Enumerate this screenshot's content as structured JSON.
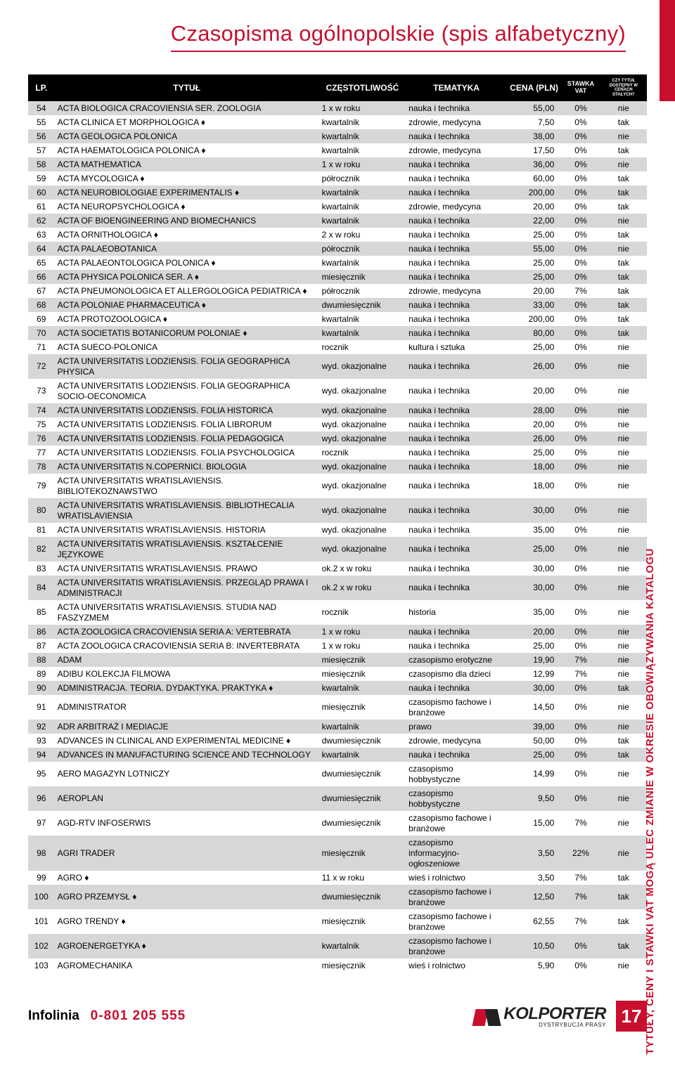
{
  "page_title": "Czasopisma ogólnopolskie (spis alfabetyczny)",
  "side_note": "TYTUŁY, CENY I STAWKI VAT MOGĄ ULEC ZMIANIE W OKRESIE OBOWIĄZYWANIA KATALOGU",
  "infolinia_label": "Infolinia",
  "infolinia_phone": "0-801 205 555",
  "logo_name": "KOLPORTER",
  "logo_sub": "DYSTRYBUCJA PRASY",
  "page_number": "17",
  "colors": {
    "accent": "#c8102e",
    "header_bg": "#000000",
    "header_fg": "#ffffff",
    "row_even": "#d6d7d8",
    "row_odd": "#ffffff"
  },
  "columns": [
    {
      "key": "lp",
      "label": "LP."
    },
    {
      "key": "title",
      "label": "TYTUŁ"
    },
    {
      "key": "freq",
      "label": "CZĘSTOTLIWOŚĆ"
    },
    {
      "key": "topic",
      "label": "TEMATYKA"
    },
    {
      "key": "price",
      "label": "CENA (PLN)"
    },
    {
      "key": "vat",
      "label": "STAWKA VAT"
    },
    {
      "key": "fixed",
      "label": "CZY TYTUŁ DOSTĘPNY W CENACH STAŁYCH?"
    }
  ],
  "rows": [
    {
      "lp": "54",
      "title": "ACTA BIOLOGICA CRACOVIENSIA SER. ZOOLOGIA",
      "freq": "1 x w roku",
      "topic": "nauka i technika",
      "price": "55,00",
      "vat": "0%",
      "fixed": "nie"
    },
    {
      "lp": "55",
      "title": "ACTA CLINICA ET MORPHOLOGICA ♦",
      "freq": "kwartalnik",
      "topic": "zdrowie, medycyna",
      "price": "7,50",
      "vat": "0%",
      "fixed": "tak"
    },
    {
      "lp": "56",
      "title": "ACTA GEOLOGICA POLONICA",
      "freq": "kwartalnik",
      "topic": "nauka i technika",
      "price": "38,00",
      "vat": "0%",
      "fixed": "nie"
    },
    {
      "lp": "57",
      "title": "ACTA HAEMATOLOGICA POLONICA ♦",
      "freq": "kwartalnik",
      "topic": "zdrowie, medycyna",
      "price": "17,50",
      "vat": "0%",
      "fixed": "tak"
    },
    {
      "lp": "58",
      "title": "ACTA MATHEMATICA",
      "freq": "1 x w roku",
      "topic": "nauka i technika",
      "price": "36,00",
      "vat": "0%",
      "fixed": "nie"
    },
    {
      "lp": "59",
      "title": "ACTA MYCOLOGICA ♦",
      "freq": "półrocznik",
      "topic": "nauka i technika",
      "price": "60,00",
      "vat": "0%",
      "fixed": "tak"
    },
    {
      "lp": "60",
      "title": "ACTA NEUROBIOLOGIAE EXPERIMENTALIS ♦",
      "freq": "kwartalnik",
      "topic": "nauka i technika",
      "price": "200,00",
      "vat": "0%",
      "fixed": "tak"
    },
    {
      "lp": "61",
      "title": "ACTA NEUROPSYCHOLOGICA ♦",
      "freq": "kwartalnik",
      "topic": "zdrowie, medycyna",
      "price": "20,00",
      "vat": "0%",
      "fixed": "tak"
    },
    {
      "lp": "62",
      "title": "ACTA OF BIOENGINEERING AND BIOMECHANICS",
      "freq": "kwartalnik",
      "topic": "nauka i technika",
      "price": "22,00",
      "vat": "0%",
      "fixed": "nie"
    },
    {
      "lp": "63",
      "title": "ACTA ORNITHOLOGICA ♦",
      "freq": "2 x w roku",
      "topic": "nauka i technika",
      "price": "25,00",
      "vat": "0%",
      "fixed": "tak"
    },
    {
      "lp": "64",
      "title": "ACTA PALAEOBOTANICA",
      "freq": "półrocznik",
      "topic": "nauka i technika",
      "price": "55,00",
      "vat": "0%",
      "fixed": "nie"
    },
    {
      "lp": "65",
      "title": "ACTA PALAEONTOLOGICA POLONICA ♦",
      "freq": "kwartalnik",
      "topic": "nauka i technika",
      "price": "25,00",
      "vat": "0%",
      "fixed": "tak"
    },
    {
      "lp": "66",
      "title": "ACTA PHYSICA POLONICA SER. A ♦",
      "freq": "miesięcznik",
      "topic": "nauka i technika",
      "price": "25,00",
      "vat": "0%",
      "fixed": "tak"
    },
    {
      "lp": "67",
      "title": "ACTA PNEUMONOLOGICA ET ALLERGOLOGICA PEDIATRICA ♦",
      "freq": "półrocznik",
      "topic": "zdrowie, medycyna",
      "price": "20,00",
      "vat": "7%",
      "fixed": "tak"
    },
    {
      "lp": "68",
      "title": "ACTA POLONIAE PHARMACEUTICA ♦",
      "freq": "dwumiesięcznik",
      "topic": "nauka i technika",
      "price": "33,00",
      "vat": "0%",
      "fixed": "tak"
    },
    {
      "lp": "69",
      "title": "ACTA PROTOZOOLOGICA ♦",
      "freq": "kwartalnik",
      "topic": "nauka i technika",
      "price": "200,00",
      "vat": "0%",
      "fixed": "tak"
    },
    {
      "lp": "70",
      "title": "ACTA SOCIETATIS BOTANICORUM POLONIAE ♦",
      "freq": "kwartalnik",
      "topic": "nauka i technika",
      "price": "80,00",
      "vat": "0%",
      "fixed": "tak"
    },
    {
      "lp": "71",
      "title": "ACTA SUECO-POLONICA",
      "freq": "rocznik",
      "topic": "kultura i sztuka",
      "price": "25,00",
      "vat": "0%",
      "fixed": "nie"
    },
    {
      "lp": "72",
      "title": "ACTA UNIVERSITATIS LODZIENSIS. FOLIA GEOGRAPHICA PHYSICA",
      "freq": "wyd. okazjonalne",
      "topic": "nauka i technika",
      "price": "26,00",
      "vat": "0%",
      "fixed": "nie"
    },
    {
      "lp": "73",
      "title": "ACTA UNIVERSITATIS LODZIENSIS. FOLIA GEOGRAPHICA SOCIO-OECONOMICA",
      "freq": "wyd. okazjonalne",
      "topic": "nauka i technika",
      "price": "20,00",
      "vat": "0%",
      "fixed": "nie"
    },
    {
      "lp": "74",
      "title": "ACTA UNIVERSITATIS LODZIENSIS. FOLIA HISTORICA",
      "freq": "wyd. okazjonalne",
      "topic": "nauka i technika",
      "price": "28,00",
      "vat": "0%",
      "fixed": "nie"
    },
    {
      "lp": "75",
      "title": "ACTA UNIVERSITATIS LODZIENSIS. FOLIA LIBRORUM",
      "freq": "wyd. okazjonalne",
      "topic": "nauka i technika",
      "price": "20,00",
      "vat": "0%",
      "fixed": "nie"
    },
    {
      "lp": "76",
      "title": "ACTA UNIVERSITATIS LODZIENSIS. FOLIA PEDAGOGICA",
      "freq": "wyd. okazjonalne",
      "topic": "nauka i technika",
      "price": "26,00",
      "vat": "0%",
      "fixed": "nie"
    },
    {
      "lp": "77",
      "title": "ACTA UNIVERSITATIS LODZIENSIS. FOLIA PSYCHOLOGICA",
      "freq": "rocznik",
      "topic": "nauka i technika",
      "price": "25,00",
      "vat": "0%",
      "fixed": "nie"
    },
    {
      "lp": "78",
      "title": "ACTA UNIVERSITATIS N.COPERNICI. BIOLOGIA",
      "freq": "wyd. okazjonalne",
      "topic": "nauka i technika",
      "price": "18,00",
      "vat": "0%",
      "fixed": "nie"
    },
    {
      "lp": "79",
      "title": "ACTA UNIVERSITATIS WRATISLAVIENSIS. BIBLIOTEKOZNAWSTWO",
      "freq": "wyd. okazjonalne",
      "topic": "nauka i technika",
      "price": "18,00",
      "vat": "0%",
      "fixed": "nie"
    },
    {
      "lp": "80",
      "title": "ACTA UNIVERSITATIS WRATISLAVIENSIS. BIBLIOTHECALIA WRATISLAVIENSIA",
      "freq": "wyd. okazjonalne",
      "topic": "nauka i technika",
      "price": "30,00",
      "vat": "0%",
      "fixed": "nie"
    },
    {
      "lp": "81",
      "title": "ACTA UNIVERSITATIS WRATISLAVIENSIS. HISTORIA",
      "freq": "wyd. okazjonalne",
      "topic": "nauka i technika",
      "price": "35,00",
      "vat": "0%",
      "fixed": "nie"
    },
    {
      "lp": "82",
      "title": "ACTA UNIVERSITATIS WRATISLAVIENSIS. KSZTAŁCENIE JĘZYKOWE",
      "freq": "wyd. okazjonalne",
      "topic": "nauka i technika",
      "price": "25,00",
      "vat": "0%",
      "fixed": "nie"
    },
    {
      "lp": "83",
      "title": "ACTA UNIVERSITATIS WRATISLAVIENSIS. PRAWO",
      "freq": "ok.2 x w roku",
      "topic": "nauka i technika",
      "price": "30,00",
      "vat": "0%",
      "fixed": "nie"
    },
    {
      "lp": "84",
      "title": "ACTA UNIVERSITATIS WRATISLAVIENSIS. PRZEGLĄD PRAWA I ADMINISTRACJI",
      "freq": "ok.2 x w roku",
      "topic": "nauka i technika",
      "price": "30,00",
      "vat": "0%",
      "fixed": "nie"
    },
    {
      "lp": "85",
      "title": "ACTA UNIVERSITATIS WRATISLAVIENSIS. STUDIA NAD FASZYZMEM",
      "freq": "rocznik",
      "topic": "historia",
      "price": "35,00",
      "vat": "0%",
      "fixed": "nie"
    },
    {
      "lp": "86",
      "title": "ACTA ZOOLOGICA CRACOVIENSIA SERIA A: VERTEBRATA",
      "freq": "1 x w roku",
      "topic": "nauka i technika",
      "price": "20,00",
      "vat": "0%",
      "fixed": "nie"
    },
    {
      "lp": "87",
      "title": "ACTA ZOOLOGICA CRACOVIENSIA SERIA B: INVERTEBRATA",
      "freq": "1 x w roku",
      "topic": "nauka i technika",
      "price": "25,00",
      "vat": "0%",
      "fixed": "nie"
    },
    {
      "lp": "88",
      "title": "ADAM",
      "freq": "miesięcznik",
      "topic": "czasopismo erotyczne",
      "price": "19,90",
      "vat": "7%",
      "fixed": "nie"
    },
    {
      "lp": "89",
      "title": "ADIBU KOLEKCJA FILMOWA",
      "freq": "miesięcznik",
      "topic": "czasopismo dla dzieci",
      "price": "12,99",
      "vat": "7%",
      "fixed": "nie"
    },
    {
      "lp": "90",
      "title": "ADMINISTRACJA. TEORIA. DYDAKTYKA. PRAKTYKA ♦",
      "freq": "kwartalnik",
      "topic": "nauka i technika",
      "price": "30,00",
      "vat": "0%",
      "fixed": "tak"
    },
    {
      "lp": "91",
      "title": "ADMINISTRATOR",
      "freq": "miesięcznik",
      "topic": "czasopismo fachowe i branżowe",
      "price": "14,50",
      "vat": "0%",
      "fixed": "nie"
    },
    {
      "lp": "92",
      "title": "ADR ARBITRAŻ I MEDIACJE",
      "freq": "kwartalnik",
      "topic": "prawo",
      "price": "39,00",
      "vat": "0%",
      "fixed": "nie"
    },
    {
      "lp": "93",
      "title": "ADVANCES IN CLINICAL AND EXPERIMENTAL MEDICINE ♦",
      "freq": "dwumiesięcznik",
      "topic": "zdrowie, medycyna",
      "price": "50,00",
      "vat": "0%",
      "fixed": "tak"
    },
    {
      "lp": "94",
      "title": "ADVANCES IN MANUFACTURING SCIENCE AND TECHNOLOGY",
      "freq": "kwartalnik",
      "topic": "nauka i technika",
      "price": "25,00",
      "vat": "0%",
      "fixed": "tak"
    },
    {
      "lp": "95",
      "title": "AERO MAGAZYN LOTNICZY",
      "freq": "dwumiesięcznik",
      "topic": "czasopismo hobbystyczne",
      "price": "14,99",
      "vat": "0%",
      "fixed": "nie"
    },
    {
      "lp": "96",
      "title": "AEROPLAN",
      "freq": "dwumiesięcznik",
      "topic": "czasopismo hobbystyczne",
      "price": "9,50",
      "vat": "0%",
      "fixed": "nie"
    },
    {
      "lp": "97",
      "title": "AGD-RTV INFOSERWIS",
      "freq": "dwumiesięcznik",
      "topic": "czasopismo fachowe i branżowe",
      "price": "15,00",
      "vat": "7%",
      "fixed": "nie"
    },
    {
      "lp": "98",
      "title": "AGRI TRADER",
      "freq": "miesięcznik",
      "topic": "czasopismo informacyjno-ogłoszeniowe",
      "price": "3,50",
      "vat": "22%",
      "fixed": "nie"
    },
    {
      "lp": "99",
      "title": "AGRO ♦",
      "freq": "11 x w roku",
      "topic": "wieś i rolnictwo",
      "price": "3,50",
      "vat": "7%",
      "fixed": "tak"
    },
    {
      "lp": "100",
      "title": "AGRO PRZEMYSŁ ♦",
      "freq": "dwumiesięcznik",
      "topic": "czasopismo fachowe i branżowe",
      "price": "12,50",
      "vat": "7%",
      "fixed": "tak"
    },
    {
      "lp": "101",
      "title": "AGRO TRENDY ♦",
      "freq": "miesięcznik",
      "topic": "czasopismo fachowe i branżowe",
      "price": "62,55",
      "vat": "7%",
      "fixed": "tak"
    },
    {
      "lp": "102",
      "title": "AGROENERGETYKA ♦",
      "freq": "kwartalnik",
      "topic": "czasopismo fachowe i branżowe",
      "price": "10,50",
      "vat": "0%",
      "fixed": "tak"
    },
    {
      "lp": "103",
      "title": "AGROMECHANIKA",
      "freq": "miesięcznik",
      "topic": "wieś i rolnictwo",
      "price": "5,90",
      "vat": "0%",
      "fixed": "nie"
    }
  ]
}
